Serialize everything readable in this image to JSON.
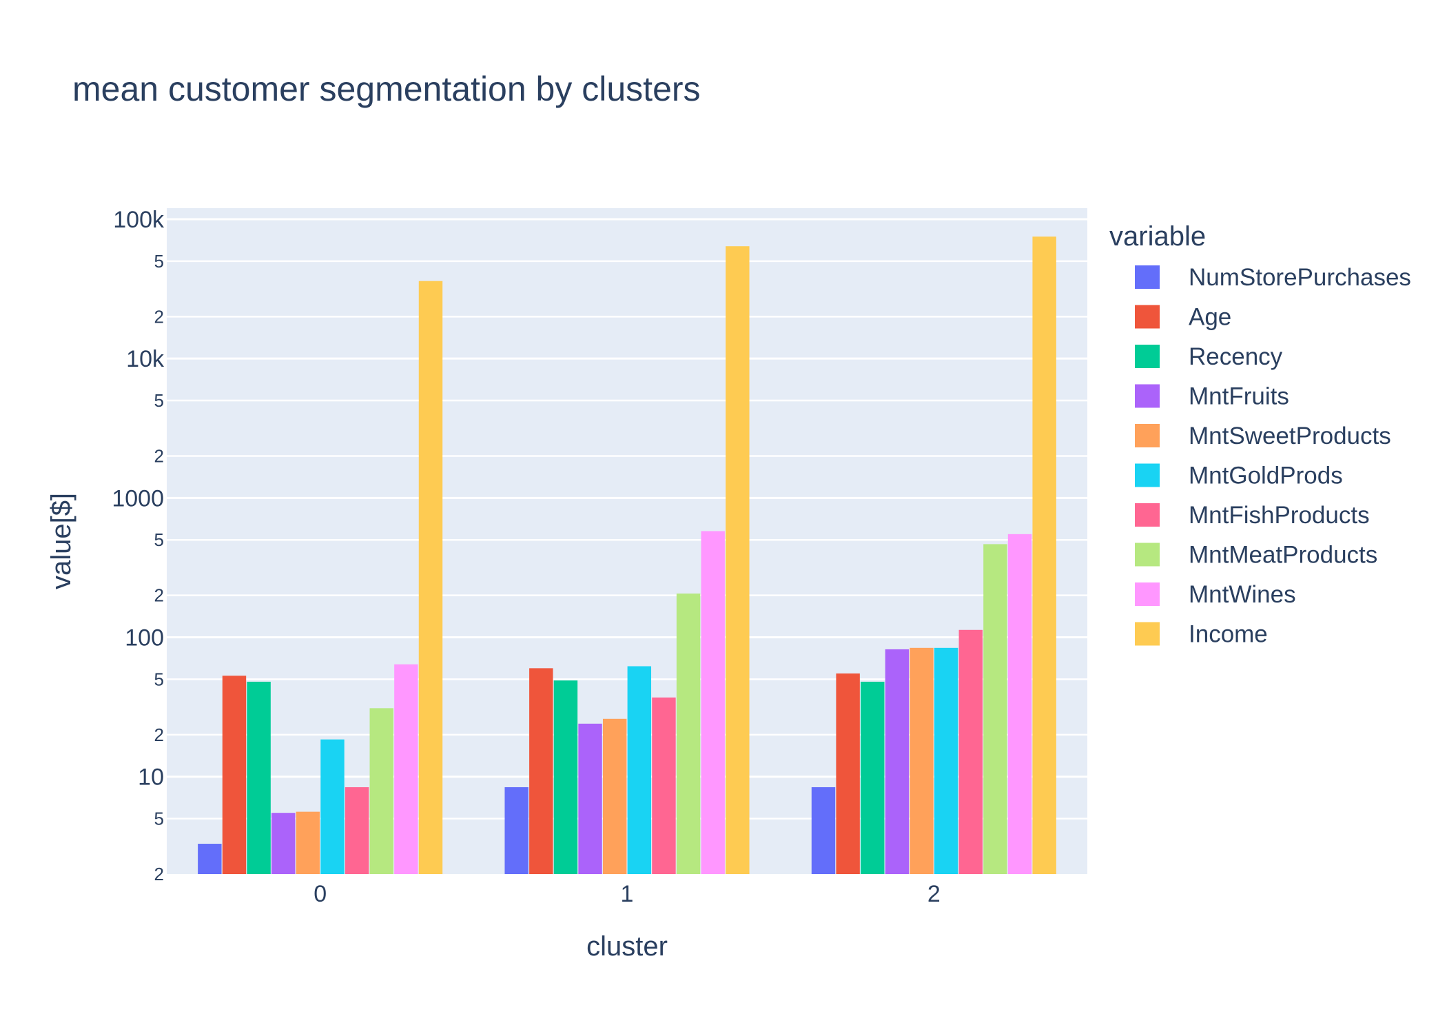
{
  "chart_data": {
    "type": "bar",
    "title": "mean customer segmentation by clusters",
    "xlabel": "cluster",
    "ylabel": "value[$]",
    "yscale": "log",
    "ylim": [
      2,
      120000
    ],
    "grid": true,
    "legend_title": "variable",
    "legend_position": "right",
    "categories": [
      "0",
      "1",
      "2"
    ],
    "y_major_ticks": [
      {
        "value": 10,
        "label": "10"
      },
      {
        "value": 100,
        "label": "100"
      },
      {
        "value": 1000,
        "label": "1000"
      },
      {
        "value": 10000,
        "label": "10k"
      },
      {
        "value": 100000,
        "label": "100k"
      }
    ],
    "y_minor_ticks": [
      {
        "value": 2,
        "label": "2"
      },
      {
        "value": 5,
        "label": "5"
      },
      {
        "value": 20,
        "label": "2"
      },
      {
        "value": 50,
        "label": "5"
      },
      {
        "value": 200,
        "label": "2"
      },
      {
        "value": 500,
        "label": "5"
      },
      {
        "value": 2000,
        "label": "2"
      },
      {
        "value": 5000,
        "label": "5"
      },
      {
        "value": 20000,
        "label": "2"
      },
      {
        "value": 50000,
        "label": "5"
      }
    ],
    "series": [
      {
        "name": "NumStorePurchases",
        "color": "#636efa",
        "values": [
          3.3,
          8.4,
          8.4
        ]
      },
      {
        "name": "Age",
        "color": "#EF553B",
        "values": [
          53,
          60,
          55
        ]
      },
      {
        "name": "Recency",
        "color": "#00cc96",
        "values": [
          48,
          49,
          48
        ]
      },
      {
        "name": "MntFruits",
        "color": "#ab63fa",
        "values": [
          5.5,
          24,
          82
        ]
      },
      {
        "name": "MntSweetProducts",
        "color": "#FFA15A",
        "values": [
          5.6,
          26,
          84
        ]
      },
      {
        "name": "MntGoldProds",
        "color": "#19d3f3",
        "values": [
          18.5,
          62,
          84
        ]
      },
      {
        "name": "MntFishProducts",
        "color": "#FF6692",
        "values": [
          8.4,
          37,
          113
        ]
      },
      {
        "name": "MntMeatProducts",
        "color": "#B6E880",
        "values": [
          31,
          206,
          466
        ]
      },
      {
        "name": "MntWines",
        "color": "#FF97FF",
        "values": [
          64,
          578,
          550
        ]
      },
      {
        "name": "Income",
        "color": "#FECB52",
        "values": [
          36000,
          64000,
          75000
        ]
      }
    ]
  }
}
